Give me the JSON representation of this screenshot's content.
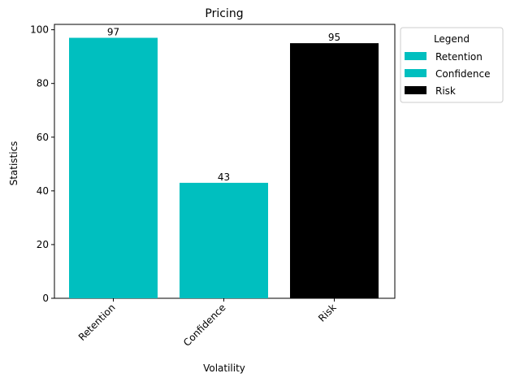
{
  "chart_data": {
    "type": "bar",
    "title": "Pricing",
    "xlabel": "Volatility",
    "ylabel": "Statistics",
    "categories": [
      "Retention",
      "Confidence",
      "Risk"
    ],
    "values": [
      97,
      43,
      95
    ],
    "colors": [
      "#00bfbf",
      "#00bfbf",
      "#000000"
    ],
    "ylim": [
      0,
      102
    ],
    "yticks": [
      0,
      20,
      40,
      60,
      80,
      100
    ],
    "grid": false,
    "legend": {
      "title": "Legend",
      "placement": "outside-right-top",
      "entries": [
        {
          "label": "Retention",
          "color": "#00bfbf"
        },
        {
          "label": "Confidence",
          "color": "#00bfbf"
        },
        {
          "label": "Risk",
          "color": "#000000"
        }
      ]
    }
  }
}
